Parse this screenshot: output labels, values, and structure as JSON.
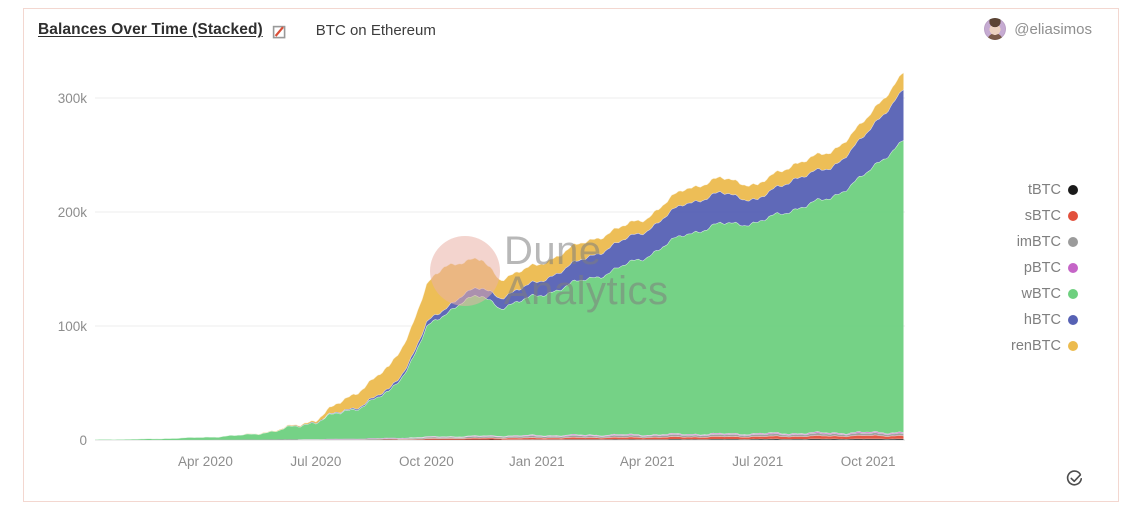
{
  "header": {
    "title": "Balances Over Time (Stacked)",
    "subtitle": "BTC on Ethereum",
    "author_handle": "@eliasimos"
  },
  "icons": {
    "title_link_icon": "square-with-red-diagonal-line",
    "author_avatar": "profile-photo",
    "footer_check_icon": "circled-checkmark"
  },
  "watermark": {
    "line1": "Dune",
    "line2": "Analytics"
  },
  "colors": {
    "card_border": "#f3d7d0",
    "gridline": "#ededed",
    "baseline": "#dcdcdc",
    "tick_text": "#8d8d8d"
  },
  "chart_data": {
    "type": "area",
    "stacked": true,
    "title": "Balances Over Time (Stacked)",
    "subtitle": "BTC on Ethereum",
    "xlabel": "",
    "ylabel": "",
    "grid": true,
    "legend_position": "right",
    "x_unit": "months since Jan 2020",
    "x": [
      0,
      1,
      2,
      3,
      4,
      5,
      6,
      7,
      8,
      8.5,
      9,
      9.5,
      10,
      10.5,
      11,
      12,
      13,
      14,
      15,
      16,
      17,
      18,
      19,
      20,
      21,
      22
    ],
    "x_dates": [
      "2020-01",
      "2020-02",
      "2020-03",
      "2020-04",
      "2020-05",
      "2020-06",
      "2020-07",
      "2020-08",
      "2020-09",
      "2020-09-15",
      "2020-10",
      "2020-10-15",
      "2020-11",
      "2020-11-15",
      "2020-12",
      "2021-01",
      "2021-02",
      "2021-03",
      "2021-04",
      "2021-05",
      "2021-06",
      "2021-07",
      "2021-08",
      "2021-09",
      "2021-10",
      "2021-11"
    ],
    "series": [
      {
        "name": "tBTC",
        "color": "#1a1a1a",
        "values": [
          0,
          0,
          0,
          0,
          0,
          0,
          0,
          100,
          100,
          150,
          200,
          250,
          300,
          350,
          400,
          500,
          600,
          700,
          700,
          800,
          800,
          900,
          900,
          1000,
          1000,
          1100
        ]
      },
      {
        "name": "sBTC",
        "color": "#e2503c",
        "values": [
          0,
          0,
          0,
          0,
          0,
          0,
          0,
          0,
          300,
          600,
          1000,
          1200,
          1300,
          1400,
          1500,
          1500,
          1600,
          1700,
          1800,
          2000,
          2200,
          2300,
          2500,
          2700,
          2900,
          3000
        ]
      },
      {
        "name": "imBTC",
        "color": "#9b9b9b",
        "values": [
          0,
          0,
          0,
          100,
          200,
          300,
          500,
          700,
          900,
          1000,
          1100,
          1200,
          1300,
          1300,
          1400,
          1500,
          1500,
          1600,
          1600,
          1700,
          1700,
          1800,
          1800,
          1900,
          1900,
          2000
        ]
      },
      {
        "name": "pBTC",
        "color": "#c565c7",
        "values": [
          0,
          0,
          0,
          0,
          100,
          100,
          200,
          300,
          400,
          400,
          500,
          500,
          500,
          600,
          600,
          600,
          700,
          700,
          700,
          800,
          800,
          800,
          900,
          900,
          900,
          1000
        ]
      },
      {
        "name": "wBTC",
        "color": "#6ed07f",
        "values": [
          500,
          800,
          1500,
          2500,
          4000,
          8000,
          16000,
          26000,
          40000,
          62000,
          95000,
          107000,
          120000,
          122000,
          113000,
          122000,
          133000,
          143000,
          157000,
          175000,
          184000,
          185000,
          197000,
          206000,
          228000,
          258000
        ]
      },
      {
        "name": "hBTC",
        "color": "#5661b4",
        "values": [
          0,
          0,
          0,
          0,
          0,
          0,
          300,
          1000,
          2000,
          3000,
          4000,
          5000,
          6000,
          7000,
          9000,
          12000,
          17000,
          22000,
          23000,
          27000,
          27000,
          20000,
          27000,
          26000,
          35000,
          45000
        ]
      },
      {
        "name": "renBTC",
        "color": "#ecbb4e",
        "values": [
          0,
          0,
          0,
          0,
          0,
          300,
          1500,
          12000,
          20000,
          25000,
          33000,
          38000,
          28000,
          25000,
          16000,
          15000,
          15000,
          13000,
          11000,
          13000,
          13000,
          13000,
          13000,
          14000,
          13000,
          15000
        ]
      }
    ],
    "xticks": [
      {
        "label": "Apr 2020",
        "x": 3
      },
      {
        "label": "Jul 2020",
        "x": 6
      },
      {
        "label": "Oct 2020",
        "x": 9
      },
      {
        "label": "Jan 2021",
        "x": 12
      },
      {
        "label": "Apr 2021",
        "x": 15
      },
      {
        "label": "Jul 2021",
        "x": 18
      },
      {
        "label": "Oct 2021",
        "x": 21
      }
    ],
    "yticks": [
      {
        "label": "0",
        "value": 0
      },
      {
        "label": "100k",
        "value": 100000
      },
      {
        "label": "200k",
        "value": 200000
      },
      {
        "label": "300k",
        "value": 300000
      }
    ],
    "ylim": [
      0,
      350000
    ],
    "xlim_months": [
      0,
      22
    ]
  }
}
